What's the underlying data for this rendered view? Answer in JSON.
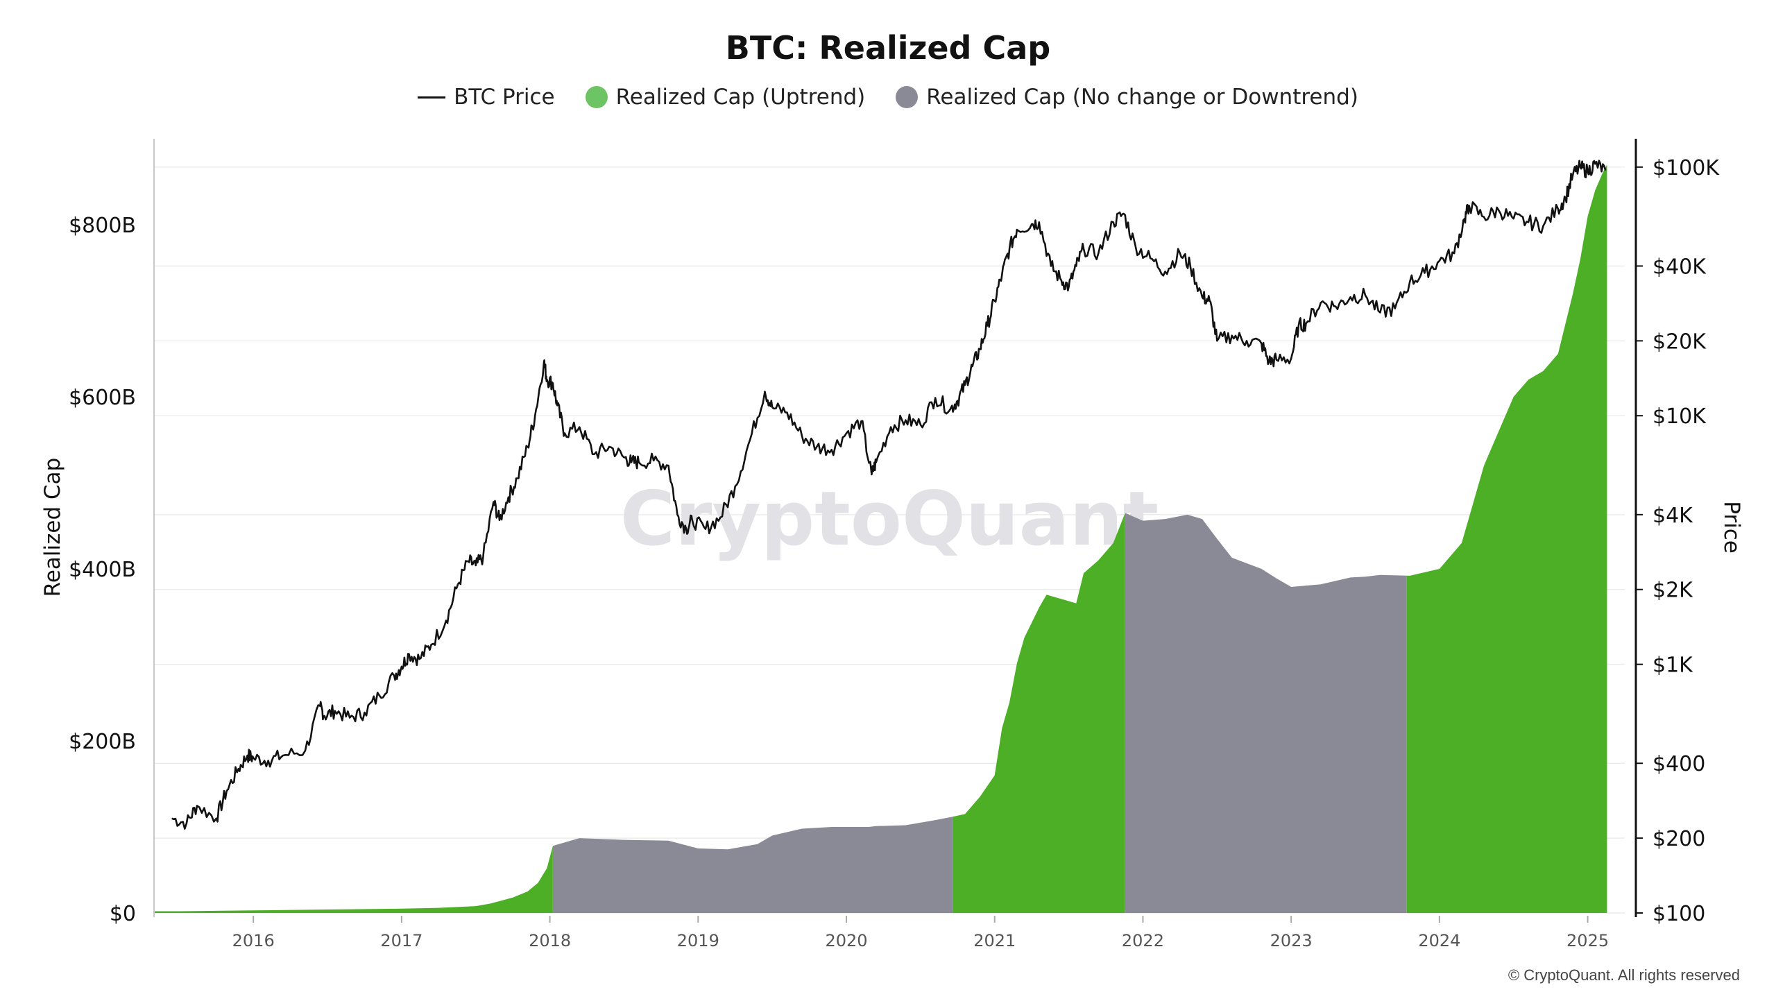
{
  "chart_data": {
    "type": "area",
    "title": "BTC: Realized Cap",
    "watermark": "CryptoQuant",
    "copyright": "© CryptoQuant. All rights reserved",
    "legend": [
      {
        "label": "BTC Price",
        "kind": "line",
        "color": "#111111"
      },
      {
        "label": "Realized Cap (Uptrend)",
        "kind": "dot",
        "color": "#6cc464"
      },
      {
        "label": "Realized Cap (No change or Downtrend)",
        "kind": "dot",
        "color": "#8a8a96"
      }
    ],
    "colors": {
      "uptrend": "#4caf25",
      "downtrend": "#8a8a96",
      "price": "#111111",
      "grid": "#ececec"
    },
    "y_left": {
      "label": "Realized Cap",
      "range": [
        0,
        900
      ],
      "unit": "billion USD",
      "ticks": [
        {
          "value": 0,
          "label": "$0"
        },
        {
          "value": 200,
          "label": "$200B"
        },
        {
          "value": 400,
          "label": "$400B"
        },
        {
          "value": 600,
          "label": "$600B"
        },
        {
          "value": 800,
          "label": "$800B"
        }
      ]
    },
    "y_right": {
      "label": "Price",
      "scale": "log",
      "range": [
        100,
        130000
      ],
      "ticks": [
        {
          "value": 100,
          "label": "$100"
        },
        {
          "value": 200,
          "label": "$200"
        },
        {
          "value": 400,
          "label": "$400"
        },
        {
          "value": 1000,
          "label": "$1K"
        },
        {
          "value": 2000,
          "label": "$2K"
        },
        {
          "value": 4000,
          "label": "$4K"
        },
        {
          "value": 10000,
          "label": "$10K"
        },
        {
          "value": 20000,
          "label": "$20K"
        },
        {
          "value": 40000,
          "label": "$40K"
        },
        {
          "value": 100000,
          "label": "$100K"
        }
      ]
    },
    "x_axis": {
      "range": [
        2015.33,
        2025.25
      ],
      "ticks": [
        {
          "value": 2016,
          "label": "2016"
        },
        {
          "value": 2017,
          "label": "2017"
        },
        {
          "value": 2018,
          "label": "2018"
        },
        {
          "value": 2019,
          "label": "2019"
        },
        {
          "value": 2020,
          "label": "2020"
        },
        {
          "value": 2021,
          "label": "2021"
        },
        {
          "value": 2022,
          "label": "2022"
        },
        {
          "value": 2023,
          "label": "2023"
        },
        {
          "value": 2024,
          "label": "2024"
        },
        {
          "value": 2025,
          "label": "2025"
        }
      ]
    },
    "series": [
      {
        "name": "BTC Price",
        "axis": "right",
        "x": [
          2015.45,
          2015.55,
          2015.62,
          2015.75,
          2015.82,
          2015.9,
          2015.96,
          2016.0,
          2016.1,
          2016.2,
          2016.35,
          2016.45,
          2016.48,
          2016.55,
          2016.65,
          2016.75,
          2016.85,
          2016.95,
          2017.0,
          2017.05,
          2017.12,
          2017.2,
          2017.3,
          2017.38,
          2017.45,
          2017.5,
          2017.55,
          2017.62,
          2017.66,
          2017.72,
          2017.78,
          2017.85,
          2017.9,
          2017.96,
          2017.98,
          2018.02,
          2018.05,
          2018.1,
          2018.2,
          2018.3,
          2018.4,
          2018.5,
          2018.55,
          2018.6,
          2018.7,
          2018.8,
          2018.86,
          2018.92,
          2018.96,
          2019.05,
          2019.15,
          2019.25,
          2019.35,
          2019.45,
          2019.5,
          2019.6,
          2019.7,
          2019.8,
          2019.9,
          2020.0,
          2020.1,
          2020.17,
          2020.2,
          2020.3,
          2020.4,
          2020.5,
          2020.6,
          2020.7,
          2020.75,
          2020.8,
          2020.85,
          2020.9,
          2020.95,
          2021.0,
          2021.05,
          2021.1,
          2021.15,
          2021.25,
          2021.3,
          2021.38,
          2021.45,
          2021.5,
          2021.55,
          2021.6,
          2021.7,
          2021.8,
          2021.87,
          2021.95,
          2022.05,
          2022.15,
          2022.25,
          2022.32,
          2022.4,
          2022.45,
          2022.5,
          2022.6,
          2022.7,
          2022.8,
          2022.85,
          2022.9,
          2023.0,
          2023.05,
          2023.1,
          2023.2,
          2023.3,
          2023.4,
          2023.5,
          2023.6,
          2023.7,
          2023.8,
          2023.9,
          2024.0,
          2024.1,
          2024.17,
          2024.2,
          2024.3,
          2024.4,
          2024.5,
          2024.6,
          2024.7,
          2024.8,
          2024.85,
          2024.9,
          2024.95,
          2025.0,
          2025.05,
          2025.12
        ],
        "y": [
          240,
          230,
          270,
          240,
          310,
          380,
          430,
          420,
          410,
          430,
          450,
          680,
          620,
          650,
          610,
          640,
          750,
          900,
          980,
          1100,
          1050,
          1200,
          1500,
          2100,
          2600,
          2500,
          2700,
          4500,
          3800,
          4700,
          5600,
          7500,
          10000,
          16500,
          14000,
          13500,
          11000,
          8500,
          9000,
          7000,
          7500,
          6800,
          6500,
          6500,
          6600,
          6300,
          4000,
          3500,
          3800,
          3500,
          3900,
          5200,
          8000,
          12500,
          10800,
          10300,
          8300,
          7500,
          7300,
          8500,
          9500,
          5800,
          6500,
          9000,
          9600,
          9200,
          11800,
          10600,
          11500,
          13300,
          15800,
          18500,
          23000,
          29000,
          37000,
          47000,
          56000,
          59000,
          60000,
          40000,
          35000,
          33000,
          40000,
          47000,
          45000,
          60000,
          65000,
          48000,
          43000,
          38000,
          45000,
          40000,
          30000,
          29000,
          20000,
          21000,
          20000,
          19500,
          16500,
          16800,
          17000,
          23000,
          23500,
          28500,
          27500,
          30000,
          30500,
          26000,
          27000,
          34500,
          37500,
          42000,
          45000,
          62000,
          70000,
          63000,
          67000,
          62000,
          60000,
          58000,
          68000,
          75000,
          93000,
          100000,
          96000,
          103000,
          97000
        ]
      },
      {
        "name": "Realized Cap",
        "axis": "left",
        "x": [
          2015.5,
          2016.0,
          2016.5,
          2017.0,
          2017.25,
          2017.5,
          2017.6,
          2017.75,
          2017.85,
          2017.92,
          2017.98,
          2018.02,
          2018.2,
          2018.5,
          2018.8,
          2019.0,
          2019.2,
          2019.4,
          2019.5,
          2019.7,
          2019.9,
          2020.0,
          2020.15,
          2020.2,
          2020.4,
          2020.6,
          2020.72,
          2020.8,
          2020.9,
          2021.0,
          2021.05,
          2021.1,
          2021.15,
          2021.2,
          2021.3,
          2021.35,
          2021.45,
          2021.55,
          2021.6,
          2021.7,
          2021.8,
          2021.88,
          2021.92,
          2022.0,
          2022.15,
          2022.3,
          2022.4,
          2022.5,
          2022.6,
          2022.8,
          2022.9,
          2023.0,
          2023.2,
          2023.4,
          2023.5,
          2023.6,
          2023.8,
          2024.0,
          2024.1,
          2024.15,
          2024.2,
          2024.3,
          2024.4,
          2024.5,
          2024.6,
          2024.7,
          2024.8,
          2024.9,
          2024.95,
          2025.0,
          2025.05,
          2025.1,
          2025.13
        ],
        "y": [
          2,
          3,
          4,
          5,
          6,
          8,
          11,
          18,
          25,
          35,
          52,
          78,
          87,
          85,
          84,
          75,
          74,
          80,
          90,
          98,
          100,
          100,
          100,
          101,
          102,
          108,
          112,
          115,
          135,
          160,
          215,
          245,
          290,
          320,
          355,
          370,
          365,
          360,
          395,
          410,
          430,
          465,
          462,
          456,
          458,
          463,
          458,
          435,
          413,
          400,
          389,
          379,
          382,
          390,
          391,
          393,
          392,
          400,
          420,
          430,
          460,
          520,
          560,
          600,
          620,
          630,
          650,
          720,
          760,
          810,
          840,
          860,
          870
        ],
        "segments": [
          {
            "start": 2015.33,
            "end": 2018.02,
            "trend": "uptrend"
          },
          {
            "start": 2018.02,
            "end": 2020.72,
            "trend": "downtrend"
          },
          {
            "start": 2020.72,
            "end": 2021.88,
            "trend": "uptrend"
          },
          {
            "start": 2021.88,
            "end": 2023.78,
            "trend": "downtrend"
          },
          {
            "start": 2023.78,
            "end": 2025.13,
            "trend": "uptrend"
          }
        ]
      }
    ]
  }
}
